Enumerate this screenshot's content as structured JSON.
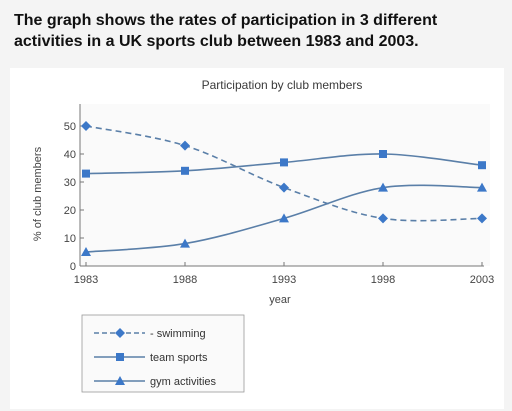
{
  "heading": {
    "line1": "The graph shows the rates of participation in 3 different",
    "line2": "activities in a UK sports club between 1983 and 2003."
  },
  "colors": {
    "line": "#5a7fa8",
    "marker": "#3c78c8",
    "axis": "#777777",
    "text": "#333333"
  },
  "chart_data": {
    "type": "line",
    "title": "Participation by club members",
    "xlabel": "year",
    "ylabel": "% of club members",
    "x": [
      "1983",
      "1988",
      "1993",
      "1998",
      "2003"
    ],
    "xlim": [
      1983,
      2003
    ],
    "ylim": [
      0,
      55
    ],
    "yticks": [
      "0",
      "10",
      "20",
      "30",
      "40",
      "50"
    ],
    "grid": false,
    "legend_position": "bottom-left",
    "series": [
      {
        "name": "swimming",
        "values": [
          50,
          43,
          28,
          17,
          17
        ],
        "marker": "diamond",
        "line_style": "dashed"
      },
      {
        "name": "team sports",
        "values": [
          33,
          34,
          37,
          40,
          36
        ],
        "marker": "square",
        "line_style": "solid"
      },
      {
        "name": "gym activities",
        "values": [
          5,
          8,
          17,
          28,
          28
        ],
        "marker": "triangle",
        "line_style": "solid"
      }
    ]
  }
}
